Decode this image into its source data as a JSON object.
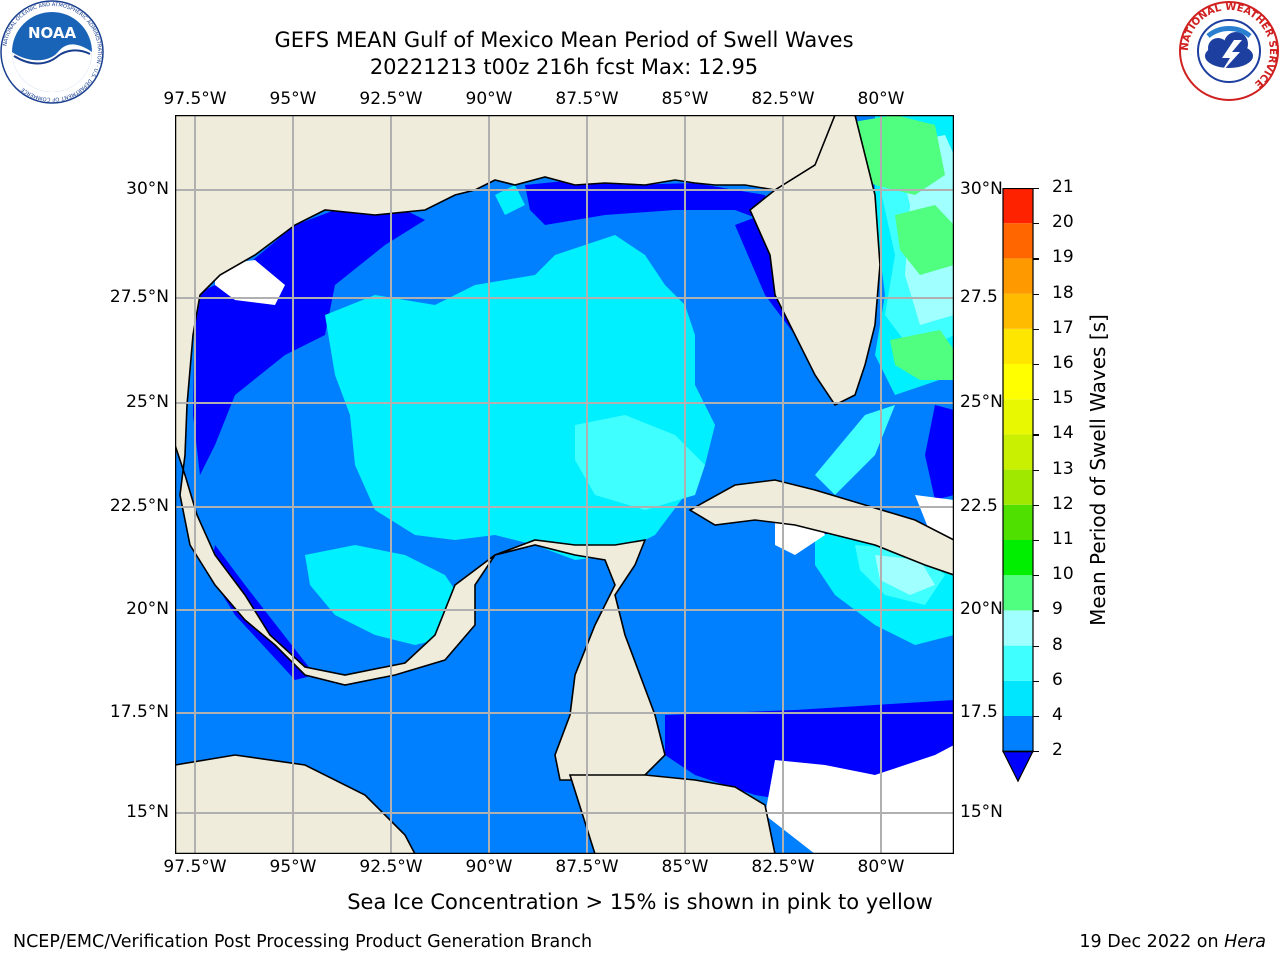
{
  "title": {
    "line1": "GEFS MEAN Gulf of Mexico Mean Period of Swell Waves",
    "line2": "20221213 t00z 216h fcst   Max: 12.95"
  },
  "map": {
    "lon_labels": [
      "97.5°W",
      "95°W",
      "92.5°W",
      "90°W",
      "87.5°W",
      "85°W",
      "82.5°W",
      "80°W"
    ],
    "lat_labels_left": [
      "30°N",
      "27.5°N",
      "25°N",
      "22.5°N",
      "20°N",
      "17.5°N",
      "15°N"
    ],
    "lat_labels_right": [
      "30°N",
      "27.5",
      "25°N",
      "22.5",
      "20°N",
      "17.5",
      "15°N"
    ],
    "land_color": "#efecdc",
    "grid_color": "#b0b0b0"
  },
  "colorbar": {
    "label": "Mean Period of Swell Waves [s]",
    "ticks": [
      "2",
      "4",
      "6",
      "8",
      "9",
      "10",
      "11",
      "12",
      "13",
      "14",
      "15",
      "16",
      "17",
      "18",
      "19",
      "20",
      "21"
    ],
    "colors": [
      "#0080ff",
      "#00e6ff",
      "#40ffff",
      "#a0ffff",
      "#50ff80",
      "#00ee00",
      "#50e000",
      "#a0e800",
      "#c8f000",
      "#e8f800",
      "#ffff00",
      "#ffe600",
      "#ffbb00",
      "#ff9900",
      "#ff6600",
      "#ff2200",
      "#ff0000"
    ],
    "extend_color": "#0000ff"
  },
  "caption": "Sea Ice Concentration > 15% is shown in pink to yellow",
  "footer": {
    "left": "NCEP/EMC/Verification Post Processing Product Generation Branch",
    "right_date": "19 Dec 2022 on ",
    "right_host": "Hera"
  },
  "logos": {
    "noaa": "NOAA",
    "noaa_ring": "NATIONAL OCEANIC AND ATMOSPHERIC ADMINISTRATION · U.S. DEPARTMENT OF COMMERCE",
    "nws_ring": "NATIONAL WEATHER SERVICE"
  }
}
